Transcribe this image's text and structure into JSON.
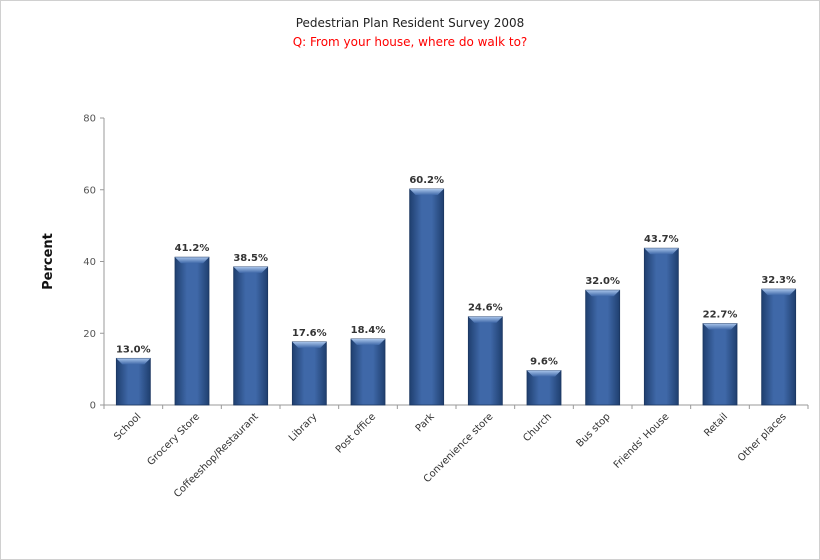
{
  "chart_data": {
    "type": "bar",
    "title": "Pedestrian Plan Resident Survey 2008",
    "subtitle": "Q:  From your house, where do walk to?",
    "xlabel": "",
    "ylabel": "Percent",
    "ylim": [
      0,
      80
    ],
    "yticks": [
      "0",
      "20",
      "40",
      "60",
      "80"
    ],
    "grid": false,
    "legend": "none",
    "categories": [
      "School",
      "Grocery Store",
      "Coffeeshop/Restaurant",
      "Library",
      "Post office",
      "Park",
      "Convenience store",
      "Church",
      "Bus stop",
      "Friends' House",
      "Retail",
      "Other places"
    ],
    "values": [
      13.0,
      41.2,
      38.5,
      17.6,
      18.4,
      60.2,
      24.6,
      9.6,
      32.0,
      43.7,
      22.7,
      32.3
    ],
    "data_labels": [
      "13.0%",
      "41.2%",
      "38.5%",
      "17.6%",
      "18.4%",
      "60.2%",
      "24.6%",
      "9.6%",
      "32.0%",
      "43.7%",
      "22.7%",
      "32.3%"
    ],
    "colors": {
      "bar_dark": "#1f3f6f",
      "bar_mid": "#3f68a8",
      "bar_light": "#7aa0d6",
      "subtitle": "#ff0000"
    }
  }
}
